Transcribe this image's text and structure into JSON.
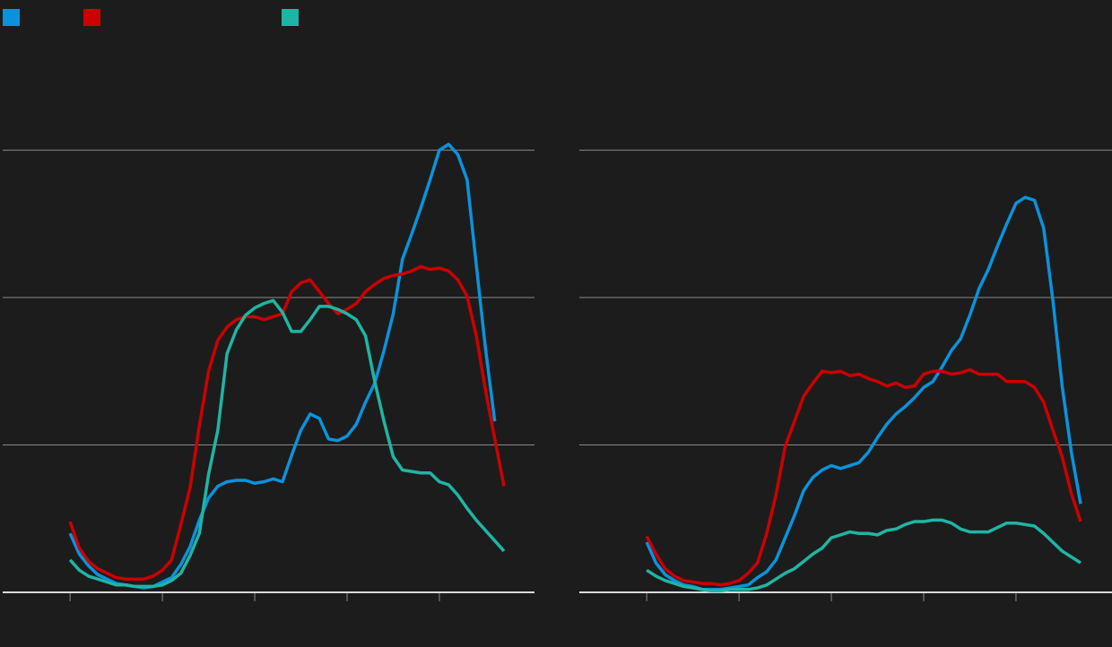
{
  "chart_data": [
    {
      "type": "line",
      "legend": true,
      "grid": true,
      "x": [
        0,
        1,
        2,
        3,
        4,
        5,
        6,
        7,
        8,
        9,
        10,
        11,
        12,
        13,
        14,
        15,
        16,
        17,
        18,
        19,
        20,
        21,
        22,
        23,
        24,
        25,
        26,
        27,
        28,
        29,
        30,
        31,
        32,
        33,
        34,
        35,
        36,
        37,
        38,
        39,
        40,
        41,
        42,
        43,
        44,
        45,
        46,
        47
      ],
      "xlim": [
        -7.3,
        50.3
      ],
      "xticks": [
        0,
        10,
        20,
        30,
        40
      ],
      "ylim": [
        0,
        3.8
      ],
      "yticks": [
        0,
        1,
        2,
        3
      ],
      "series": [
        {
          "color": "#0a93dc",
          "values": [
            0.4,
            0.26,
            0.18,
            0.12,
            0.09,
            0.06,
            0.05,
            0.04,
            0.03,
            0.04,
            0.07,
            0.1,
            0.19,
            0.31,
            0.49,
            0.64,
            0.72,
            0.75,
            0.76,
            0.76,
            0.74,
            0.75,
            0.77,
            0.75,
            0.93,
            1.1,
            1.21,
            1.18,
            1.04,
            1.03,
            1.06,
            1.14,
            1.29,
            1.42,
            1.64,
            1.89,
            2.26,
            2.43,
            2.61,
            2.8,
            3.0,
            3.04,
            2.97,
            2.8,
            2.22,
            1.65,
            1.16,
            null
          ]
        },
        {
          "color": "#cc0000",
          "values": [
            0.48,
            0.3,
            0.21,
            0.16,
            0.13,
            0.1,
            0.09,
            0.09,
            0.09,
            0.11,
            0.15,
            0.22,
            0.46,
            0.71,
            1.13,
            1.5,
            1.71,
            1.8,
            1.85,
            1.87,
            1.87,
            1.85,
            1.87,
            1.89,
            2.04,
            2.1,
            2.12,
            2.04,
            1.96,
            1.89,
            1.92,
            1.96,
            2.04,
            2.09,
            2.13,
            2.15,
            2.16,
            2.18,
            2.21,
            2.19,
            2.2,
            2.18,
            2.12,
            2.01,
            1.74,
            1.37,
            1.04,
            0.72
          ]
        },
        {
          "color": "#1fb5a4",
          "values": [
            0.22,
            0.15,
            0.11,
            0.09,
            0.07,
            0.05,
            0.05,
            0.04,
            0.04,
            0.04,
            0.05,
            0.08,
            0.13,
            0.25,
            0.4,
            0.8,
            1.1,
            1.62,
            1.78,
            1.88,
            1.93,
            1.96,
            1.98,
            1.9,
            1.77,
            1.77,
            1.85,
            1.94,
            1.94,
            1.92,
            1.89,
            1.85,
            1.74,
            1.43,
            1.16,
            0.92,
            0.83,
            0.82,
            0.81,
            0.81,
            0.75,
            0.73,
            0.66,
            0.57,
            0.49,
            0.42,
            0.35,
            0.28
          ]
        }
      ]
    },
    {
      "type": "line",
      "grid": true,
      "x": [
        0,
        1,
        2,
        3,
        4,
        5,
        6,
        7,
        8,
        9,
        10,
        11,
        12,
        13,
        14,
        15,
        16,
        17,
        18,
        19,
        20,
        21,
        22,
        23,
        24,
        25,
        26,
        27,
        28,
        29,
        30,
        31,
        32,
        33,
        34,
        35,
        36,
        37,
        38,
        39,
        40,
        41,
        42,
        43,
        44,
        45,
        46,
        47
      ],
      "xlim": [
        -7.3,
        50.4
      ],
      "xticks": [
        0,
        10,
        20,
        30,
        40
      ],
      "ylim": [
        0,
        3.8
      ],
      "yticks": [
        0,
        1,
        2,
        3
      ],
      "series": [
        {
          "color": "#0a93dc",
          "values": [
            0.34,
            0.2,
            0.12,
            0.08,
            0.05,
            0.04,
            0.02,
            0.02,
            0.02,
            0.03,
            0.04,
            0.05,
            0.1,
            0.14,
            0.22,
            0.37,
            0.52,
            0.69,
            0.78,
            0.83,
            0.86,
            0.84,
            0.86,
            0.88,
            0.95,
            1.05,
            1.14,
            1.21,
            1.26,
            1.32,
            1.39,
            1.43,
            1.53,
            1.64,
            1.72,
            1.88,
            2.06,
            2.19,
            2.35,
            2.5,
            2.64,
            2.68,
            2.66,
            2.47,
            1.98,
            1.4,
            0.95,
            0.6
          ]
        },
        {
          "color": "#cc0000",
          "values": [
            0.38,
            0.26,
            0.16,
            0.11,
            0.08,
            0.07,
            0.06,
            0.06,
            0.05,
            0.06,
            0.08,
            0.13,
            0.2,
            0.4,
            0.66,
            0.99,
            1.16,
            1.33,
            1.42,
            1.5,
            1.49,
            1.5,
            1.47,
            1.48,
            1.45,
            1.43,
            1.4,
            1.42,
            1.39,
            1.4,
            1.48,
            1.5,
            1.5,
            1.48,
            1.49,
            1.51,
            1.48,
            1.48,
            1.48,
            1.43,
            1.43,
            1.43,
            1.39,
            1.29,
            1.1,
            0.92,
            0.67,
            0.48
          ]
        },
        {
          "color": "#1fb5a4",
          "values": [
            0.15,
            0.11,
            0.08,
            0.06,
            0.04,
            0.03,
            0.02,
            0.01,
            0.01,
            0.02,
            0.02,
            0.02,
            0.03,
            0.05,
            0.09,
            0.13,
            0.16,
            0.21,
            0.26,
            0.3,
            0.37,
            0.39,
            0.41,
            0.4,
            0.4,
            0.39,
            0.42,
            0.43,
            0.46,
            0.48,
            0.48,
            0.49,
            0.49,
            0.47,
            0.43,
            0.41,
            0.41,
            0.41,
            0.44,
            0.47,
            0.47,
            0.46,
            0.45,
            0.4,
            0.34,
            0.28,
            0.24,
            0.2
          ]
        }
      ]
    }
  ]
}
